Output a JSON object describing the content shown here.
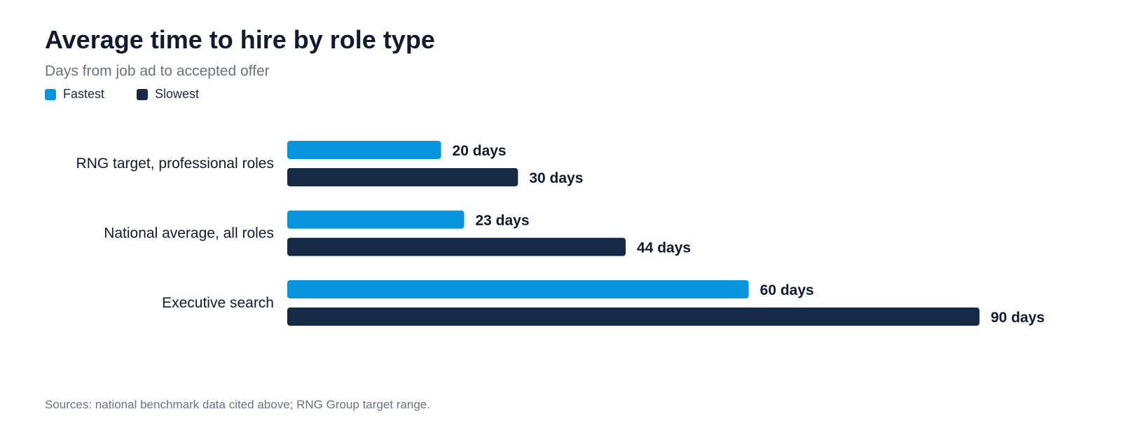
{
  "chart_data": {
    "type": "bar",
    "orientation": "horizontal",
    "title": "Average time to hire by role type",
    "subtitle": "Days from job ad to accepted offer",
    "categories": [
      "RNG target, professional roles",
      "National average, all roles",
      "Executive search"
    ],
    "series": [
      {
        "name": "Fastest",
        "color": "#0895dd",
        "values": [
          20,
          23,
          60
        ],
        "labels": [
          "20 days",
          "23 days",
          "60 days"
        ]
      },
      {
        "name": "Slowest",
        "color": "#172a45",
        "values": [
          30,
          44,
          90
        ],
        "labels": [
          "30 days",
          "44 days",
          "90 days"
        ]
      }
    ],
    "xlim": [
      0,
      90
    ],
    "grid": false,
    "legend_position": "top-left",
    "source": "Sources: national benchmark data cited above; RNG Group target range."
  }
}
